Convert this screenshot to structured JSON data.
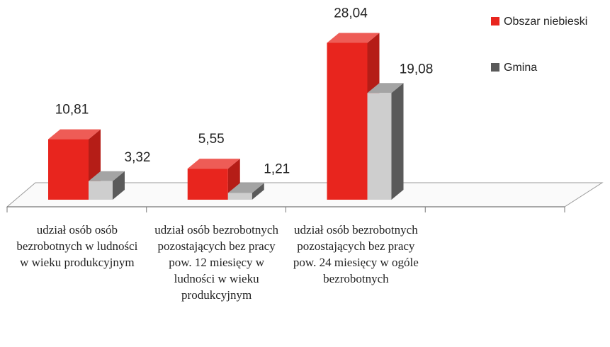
{
  "chart_data": {
    "type": "bar3d",
    "categories": [
      "udział osób osób bezrobotnych w ludności w wieku produkcyjnym",
      "udział osób bezrobotnych pozostających bez pracy pow. 12 miesięcy w ludności w wieku produkcyjnym",
      "udział osób bezrobotnych pozostających bez pracy pow. 24 miesięcy w ogóle bezrobotnych"
    ],
    "series": [
      {
        "name": "Obszar niebieski",
        "color": "#e8251e",
        "values": [
          10.81,
          5.55,
          28.04
        ],
        "value_labels": [
          "10,81",
          "5,55",
          "28,04"
        ]
      },
      {
        "name": "Gmina",
        "color": "#5a5a5a",
        "values": [
          3.32,
          1.21,
          19.08
        ],
        "value_labels": [
          "3,32",
          "1,21",
          "19,08"
        ]
      }
    ],
    "ylim": [
      0,
      30
    ],
    "legend": "right"
  }
}
